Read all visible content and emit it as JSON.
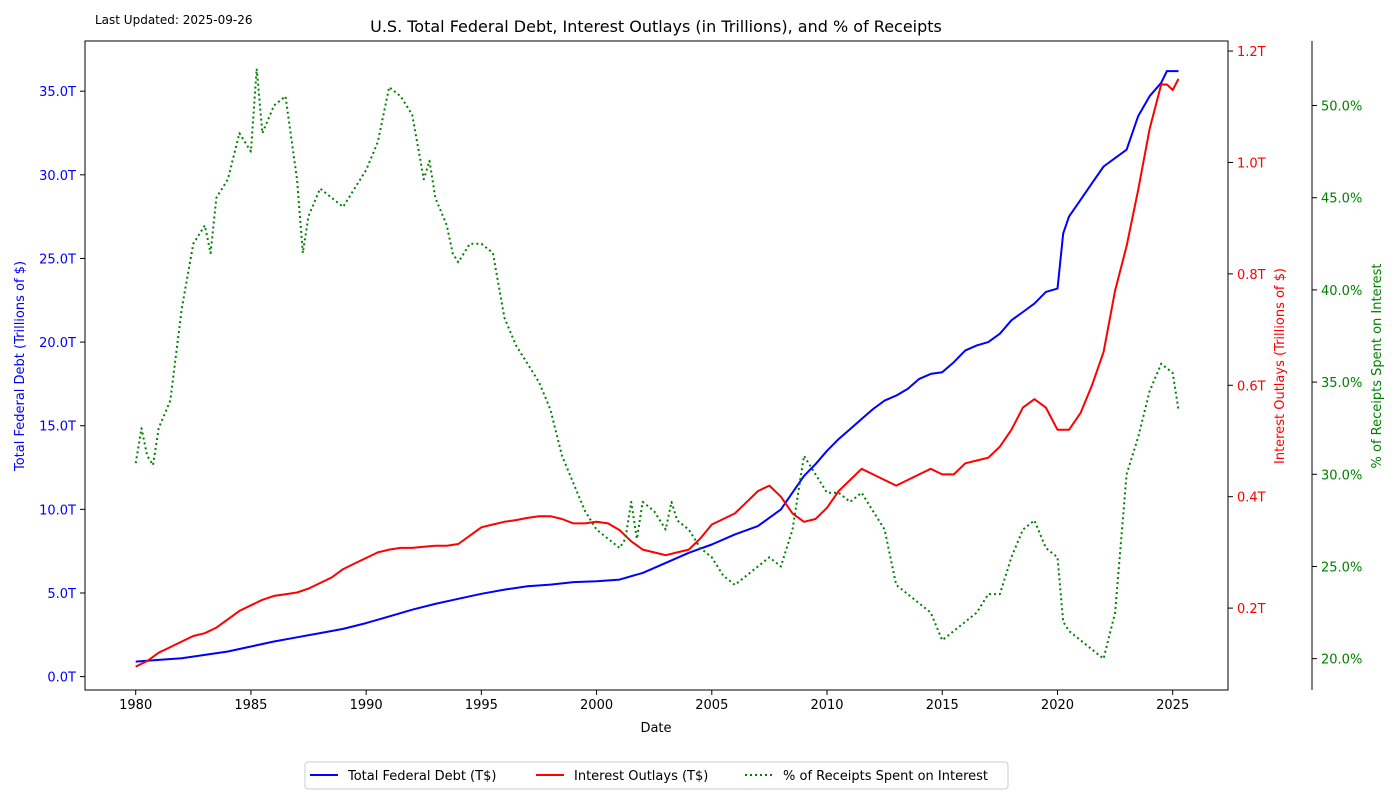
{
  "header": {
    "last_updated": "Last Updated: 2025-09-26",
    "title": "U.S. Total Federal Debt, Interest Outlays (in Trillions), and % of Receipts"
  },
  "colors": {
    "debt": "#0000ff",
    "interest": "#ff0000",
    "percent": "#008000",
    "axis": "#000000"
  },
  "legend": {
    "placement": "bottom-center",
    "items": [
      {
        "label": "Total Federal Debt (T$)",
        "color": "#0000ff",
        "style": "solid"
      },
      {
        "label": "Interest Outlays (T$)",
        "color": "#ff0000",
        "style": "solid"
      },
      {
        "label": "% of Receipts Spent on Interest",
        "color": "#008000",
        "style": "dotted"
      }
    ]
  },
  "chart_data": {
    "type": "line",
    "title": "U.S. Total Federal Debt, Interest Outlays (in Trillions), and % of Receipts",
    "xlabel": "Date",
    "grid": false,
    "x_ticks": [
      1980,
      1985,
      1990,
      1995,
      2000,
      2005,
      2010,
      2015,
      2020,
      2025
    ],
    "xlim": [
      1977.8,
      2027.4
    ],
    "axes": {
      "left": {
        "label": "Total Federal Debt (Trillions of $)",
        "color": "#0000ff",
        "ylim": [
          -0.8,
          38.0
        ],
        "ticks": [
          0,
          5,
          10,
          15,
          20,
          25,
          30,
          35
        ],
        "tick_labels": [
          "0.0T",
          "5.0T",
          "10.0T",
          "15.0T",
          "20.0T",
          "25.0T",
          "30.0T",
          "35.0T"
        ]
      },
      "right": {
        "label": "Interest Outlays (Trillions of $)",
        "color": "#ff0000",
        "ylim": [
          0.053,
          1.218
        ],
        "ticks": [
          0.2,
          0.4,
          0.6,
          0.8,
          1.0,
          1.2
        ],
        "tick_labels": [
          "0.2T",
          "0.4T",
          "0.6T",
          "0.8T",
          "1.0T",
          "1.2T"
        ]
      },
      "right2": {
        "label": "% of Receipts Spent on Interest",
        "color": "#008000",
        "ylim": [
          18.3,
          53.5
        ],
        "ticks": [
          20,
          25,
          30,
          35,
          40,
          45,
          50
        ],
        "tick_labels": [
          "20.0%",
          "25.0%",
          "30.0%",
          "35.0%",
          "40.0%",
          "45.0%",
          "50.0%"
        ]
      }
    },
    "series": [
      {
        "name": "Total Federal Debt (T$)",
        "axis": "left",
        "color": "#0000ff",
        "style": "solid",
        "x": [
          1980.0,
          1981.0,
          1982.0,
          1983.0,
          1984.0,
          1985.0,
          1986.0,
          1987.0,
          1988.0,
          1989.0,
          1990.0,
          1991.0,
          1992.0,
          1993.0,
          1994.0,
          1995.0,
          1996.0,
          1997.0,
          1998.0,
          1999.0,
          2000.0,
          2001.0,
          2002.0,
          2003.0,
          2004.0,
          2005.0,
          2006.0,
          2007.0,
          2008.0,
          2008.5,
          2009.0,
          2009.5,
          2010.0,
          2010.5,
          2011.0,
          2011.5,
          2012.0,
          2012.5,
          2013.0,
          2013.5,
          2014.0,
          2014.5,
          2015.0,
          2015.5,
          2016.0,
          2016.5,
          2017.0,
          2017.5,
          2018.0,
          2018.5,
          2019.0,
          2019.5,
          2020.0,
          2020.25,
          2020.5,
          2021.0,
          2021.5,
          2022.0,
          2022.5,
          2023.0,
          2023.5,
          2024.0,
          2024.5,
          2024.75,
          2025.0,
          2025.25
        ],
        "values": [
          0.9,
          1.0,
          1.1,
          1.3,
          1.5,
          1.8,
          2.1,
          2.35,
          2.6,
          2.85,
          3.2,
          3.6,
          4.0,
          4.35,
          4.65,
          4.95,
          5.2,
          5.4,
          5.5,
          5.65,
          5.7,
          5.8,
          6.2,
          6.8,
          7.4,
          7.9,
          8.5,
          9.0,
          10.0,
          11.0,
          12.0,
          12.7,
          13.5,
          14.2,
          14.8,
          15.4,
          16.0,
          16.5,
          16.8,
          17.2,
          17.8,
          18.1,
          18.2,
          18.8,
          19.5,
          19.8,
          20.0,
          20.5,
          21.3,
          21.8,
          22.3,
          23.0,
          23.2,
          26.5,
          27.5,
          28.5,
          29.5,
          30.5,
          31.0,
          31.5,
          33.5,
          34.7,
          35.5,
          36.2,
          36.2,
          36.2
        ]
      },
      {
        "name": "Interest Outlays (T$)",
        "axis": "right",
        "color": "#ff0000",
        "style": "solid",
        "x": [
          1980.0,
          1980.5,
          1981.0,
          1981.5,
          1982.0,
          1982.5,
          1983.0,
          1983.5,
          1984.0,
          1984.5,
          1985.0,
          1985.5,
          1986.0,
          1986.5,
          1987.0,
          1987.5,
          1988.0,
          1988.5,
          1989.0,
          1989.5,
          1990.0,
          1990.5,
          1991.0,
          1991.5,
          1992.0,
          1992.5,
          1993.0,
          1993.5,
          1994.0,
          1994.5,
          1995.0,
          1995.5,
          1996.0,
          1996.5,
          1997.0,
          1997.5,
          1998.0,
          1998.5,
          1999.0,
          1999.5,
          2000.0,
          2000.5,
          2001.0,
          2001.5,
          2002.0,
          2002.5,
          2003.0,
          2003.5,
          2004.0,
          2004.5,
          2005.0,
          2005.5,
          2006.0,
          2006.5,
          2007.0,
          2007.5,
          2008.0,
          2008.5,
          2009.0,
          2009.5,
          2010.0,
          2010.5,
          2011.0,
          2011.5,
          2012.0,
          2012.5,
          2013.0,
          2013.5,
          2014.0,
          2014.5,
          2015.0,
          2015.5,
          2016.0,
          2016.5,
          2017.0,
          2017.5,
          2018.0,
          2018.5,
          2019.0,
          2019.5,
          2020.0,
          2020.5,
          2021.0,
          2021.5,
          2022.0,
          2022.5,
          2023.0,
          2023.5,
          2024.0,
          2024.25,
          2024.5,
          2024.75,
          2025.0,
          2025.25
        ],
        "values": [
          0.095,
          0.105,
          0.12,
          0.13,
          0.14,
          0.15,
          0.155,
          0.165,
          0.18,
          0.195,
          0.205,
          0.215,
          0.222,
          0.225,
          0.228,
          0.235,
          0.245,
          0.255,
          0.27,
          0.28,
          0.29,
          0.3,
          0.305,
          0.308,
          0.308,
          0.31,
          0.312,
          0.312,
          0.315,
          0.33,
          0.345,
          0.35,
          0.355,
          0.358,
          0.362,
          0.365,
          0.365,
          0.36,
          0.352,
          0.352,
          0.355,
          0.352,
          0.34,
          0.32,
          0.305,
          0.3,
          0.295,
          0.3,
          0.305,
          0.325,
          0.35,
          0.36,
          0.37,
          0.39,
          0.41,
          0.42,
          0.4,
          0.37,
          0.355,
          0.36,
          0.38,
          0.41,
          0.43,
          0.45,
          0.44,
          0.43,
          0.42,
          0.43,
          0.44,
          0.45,
          0.44,
          0.44,
          0.46,
          0.465,
          0.47,
          0.49,
          0.52,
          0.56,
          0.575,
          0.56,
          0.52,
          0.52,
          0.55,
          0.6,
          0.66,
          0.77,
          0.85,
          0.95,
          1.06,
          1.1,
          1.14,
          1.14,
          1.13,
          1.15
        ]
      },
      {
        "name": "% of Receipts Spent on Interest",
        "axis": "right2",
        "color": "#008000",
        "style": "dotted",
        "x": [
          1980.0,
          1980.25,
          1980.5,
          1980.75,
          1981.0,
          1981.5,
          1982.0,
          1982.5,
          1983.0,
          1983.25,
          1983.5,
          1984.0,
          1984.5,
          1985.0,
          1985.25,
          1985.5,
          1986.0,
          1986.5,
          1987.0,
          1987.25,
          1987.5,
          1988.0,
          1988.5,
          1989.0,
          1989.5,
          1990.0,
          1990.5,
          1991.0,
          1991.5,
          1992.0,
          1992.5,
          1992.75,
          1993.0,
          1993.5,
          1993.75,
          1994.0,
          1994.5,
          1995.0,
          1995.5,
          1996.0,
          1996.5,
          1997.0,
          1997.5,
          1998.0,
          1998.5,
          1999.0,
          1999.5,
          2000.0,
          2000.5,
          2001.0,
          2001.25,
          2001.5,
          2001.75,
          2002.0,
          2002.5,
          2003.0,
          2003.25,
          2003.5,
          2004.0,
          2004.5,
          2005.0,
          2005.5,
          2006.0,
          2006.5,
          2007.0,
          2007.5,
          2008.0,
          2008.5,
          2009.0,
          2009.5,
          2010.0,
          2010.5,
          2011.0,
          2011.5,
          2012.0,
          2012.5,
          2013.0,
          2013.5,
          2014.0,
          2014.5,
          2015.0,
          2015.5,
          2016.0,
          2016.5,
          2017.0,
          2017.5,
          2018.0,
          2018.5,
          2019.0,
          2019.5,
          2020.0,
          2020.25,
          2020.5,
          2021.0,
          2021.5,
          2022.0,
          2022.5,
          2023.0,
          2023.5,
          2024.0,
          2024.5,
          2025.0,
          2025.25
        ],
        "values": [
          30.6,
          32.5,
          31.0,
          30.5,
          32.5,
          34.0,
          39.0,
          42.5,
          43.5,
          42.0,
          45.0,
          46.0,
          48.5,
          47.5,
          52.0,
          48.5,
          50.0,
          50.5,
          46.0,
          42.0,
          44.0,
          45.5,
          45.0,
          44.5,
          45.5,
          46.5,
          48.0,
          51.0,
          50.5,
          49.5,
          46.0,
          47.0,
          45.0,
          43.5,
          42.0,
          41.5,
          42.5,
          42.5,
          42.0,
          38.5,
          37.0,
          36.0,
          35.0,
          33.5,
          31.0,
          29.5,
          28.0,
          27.0,
          26.5,
          26.0,
          26.5,
          28.5,
          26.5,
          28.5,
          28.0,
          27.0,
          28.5,
          27.5,
          27.0,
          26.0,
          25.5,
          24.5,
          24.0,
          24.5,
          25.0,
          25.5,
          25.0,
          27.0,
          31.0,
          30.0,
          29.0,
          29.0,
          28.5,
          29.0,
          28.0,
          27.0,
          24.0,
          23.5,
          23.0,
          22.5,
          21.0,
          21.5,
          22.0,
          22.5,
          23.5,
          23.5,
          25.5,
          27.0,
          27.5,
          26.0,
          25.5,
          22.0,
          21.5,
          21.0,
          20.5,
          20.0,
          22.5,
          30.0,
          32.0,
          34.5,
          36.0,
          35.5,
          33.5
        ]
      }
    ]
  }
}
